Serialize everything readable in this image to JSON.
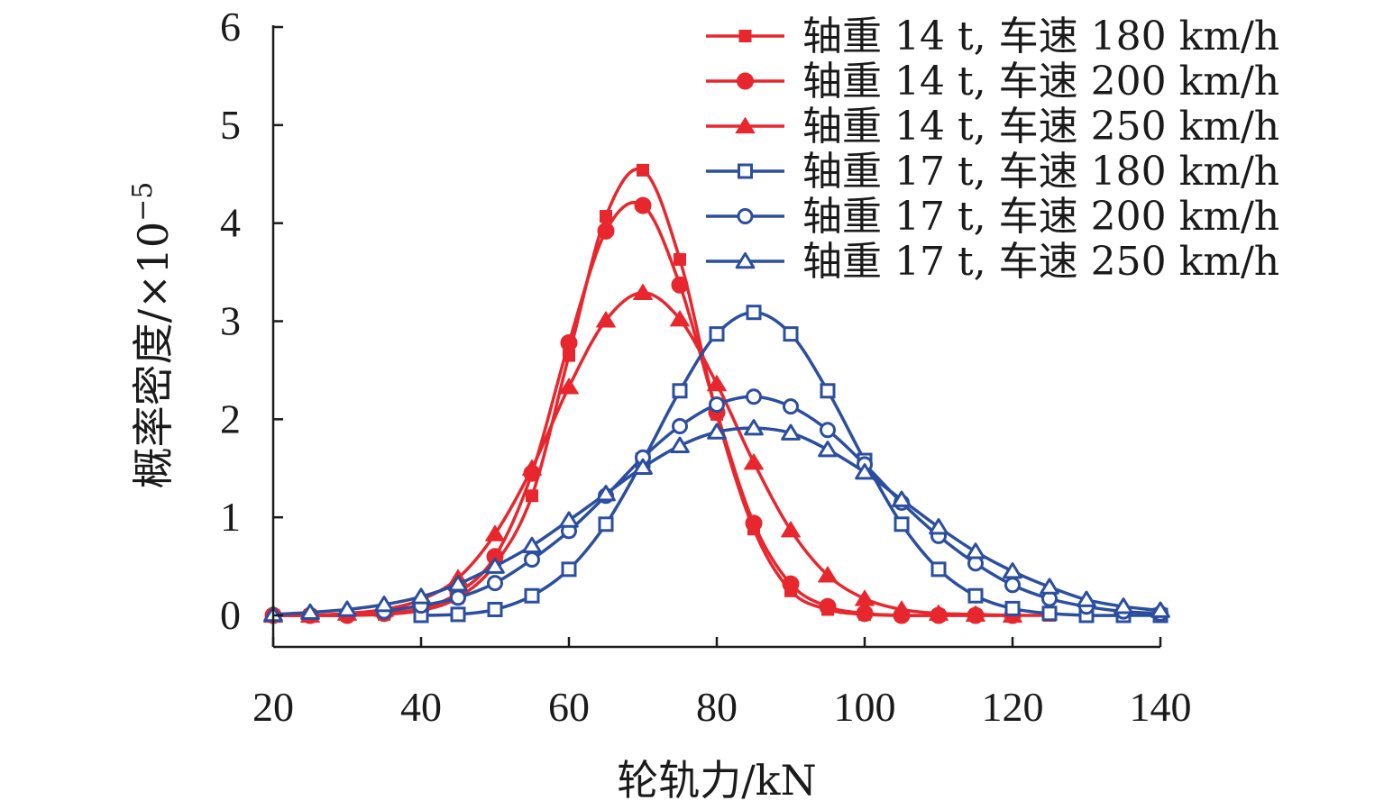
{
  "chart_data": {
    "type": "line",
    "title": "",
    "xlabel": "轮轨力/kN",
    "ylabel": "概率密度/×10",
    "ylabel_exponent": "−5",
    "xlim": [
      20,
      140
    ],
    "ylim": [
      0,
      6
    ],
    "xticks": [
      20,
      40,
      60,
      80,
      100,
      120,
      140
    ],
    "yticks": [
      0,
      1,
      2,
      3,
      4,
      5,
      6
    ],
    "xtick_labels": [
      "20",
      "40",
      "60",
      "80",
      "100",
      "120",
      "140"
    ],
    "ytick_labels": [
      "0",
      "1",
      "2",
      "3",
      "4",
      "5",
      "6"
    ],
    "grid": false,
    "legend_position": "top-right",
    "x": [
      20,
      25,
      30,
      35,
      40,
      45,
      50,
      55,
      60,
      65,
      70,
      75,
      80,
      85,
      90,
      95,
      100,
      105,
      110,
      115,
      120,
      125,
      130,
      135,
      140
    ],
    "series": [
      {
        "name": "轴重 14 t, 车速 180 km/h",
        "color": "#e8262d",
        "marker": "square-filled",
        "x": [
          20,
          25,
          30,
          35,
          40,
          45,
          50,
          55,
          60,
          65,
          70,
          75,
          80,
          85,
          90,
          95,
          100,
          105,
          110,
          115,
          120,
          125
        ],
        "values": [
          0,
          0,
          0,
          0.01,
          0.05,
          0.18,
          0.52,
          1.22,
          2.65,
          4.07,
          4.54,
          3.63,
          2.05,
          0.88,
          0.25,
          0.06,
          0.01,
          0,
          0,
          0,
          0,
          0
        ]
      },
      {
        "name": "轴重 14 t, 车速 200 km/h",
        "color": "#e8262d",
        "marker": "circle-filled",
        "x": [
          20,
          25,
          30,
          35,
          40,
          45,
          50,
          55,
          60,
          65,
          70,
          75,
          80,
          85,
          90,
          95,
          100,
          105,
          110,
          115,
          120
        ],
        "values": [
          0,
          0,
          0,
          0.02,
          0.07,
          0.23,
          0.6,
          1.45,
          2.78,
          3.92,
          4.18,
          3.37,
          2.07,
          0.94,
          0.32,
          0.09,
          0.02,
          0,
          0,
          0,
          0
        ]
      },
      {
        "name": "轴重 14 t, 车速 250 km/h",
        "color": "#e8262d",
        "marker": "triangle-filled",
        "x": [
          20,
          25,
          30,
          35,
          40,
          45,
          50,
          55,
          60,
          65,
          70,
          75,
          80,
          85,
          90,
          95,
          100,
          105,
          110,
          115,
          120
        ],
        "values": [
          0,
          0,
          0.02,
          0.06,
          0.16,
          0.38,
          0.83,
          1.5,
          2.33,
          3.01,
          3.29,
          3.02,
          2.36,
          1.56,
          0.87,
          0.41,
          0.17,
          0.06,
          0.02,
          0.01,
          0
        ]
      },
      {
        "name": "轴重 17 t, 车速 180 km/h",
        "color": "#2b4e9e",
        "marker": "square-open",
        "x": [
          40,
          45,
          50,
          55,
          60,
          65,
          70,
          75,
          80,
          85,
          90,
          95,
          100,
          105,
          110,
          115,
          120,
          125,
          130,
          135,
          140
        ],
        "values": [
          0,
          0.01,
          0.06,
          0.2,
          0.47,
          0.93,
          1.58,
          2.29,
          2.87,
          3.09,
          2.87,
          2.29,
          1.58,
          0.93,
          0.47,
          0.2,
          0.07,
          0.02,
          0,
          0,
          0
        ]
      },
      {
        "name": "轴重 17 t, 车速 200 km/h",
        "color": "#2b4e9e",
        "marker": "circle-open",
        "x": [
          35,
          40,
          45,
          50,
          55,
          60,
          65,
          70,
          75,
          80,
          85,
          90,
          95,
          100,
          105,
          110,
          115,
          120,
          125,
          130,
          135,
          140
        ],
        "values": [
          0.04,
          0.1,
          0.18,
          0.33,
          0.57,
          0.86,
          1.22,
          1.61,
          1.93,
          2.15,
          2.23,
          2.13,
          1.89,
          1.54,
          1.15,
          0.81,
          0.53,
          0.31,
          0.17,
          0.09,
          0.04,
          0.02
        ]
      },
      {
        "name": "轴重 17 t, 车速 250 km/h",
        "color": "#2b4e9e",
        "marker": "triangle-open",
        "x": [
          20,
          25,
          30,
          35,
          40,
          45,
          50,
          55,
          60,
          65,
          70,
          75,
          80,
          85,
          90,
          95,
          100,
          105,
          110,
          115,
          120,
          125,
          130,
          135,
          140
        ],
        "values": [
          0.01,
          0.03,
          0.06,
          0.11,
          0.19,
          0.32,
          0.5,
          0.71,
          0.97,
          1.24,
          1.51,
          1.73,
          1.87,
          1.91,
          1.86,
          1.69,
          1.46,
          1.18,
          0.9,
          0.65,
          0.45,
          0.29,
          0.16,
          0.09,
          0.05
        ]
      }
    ]
  }
}
